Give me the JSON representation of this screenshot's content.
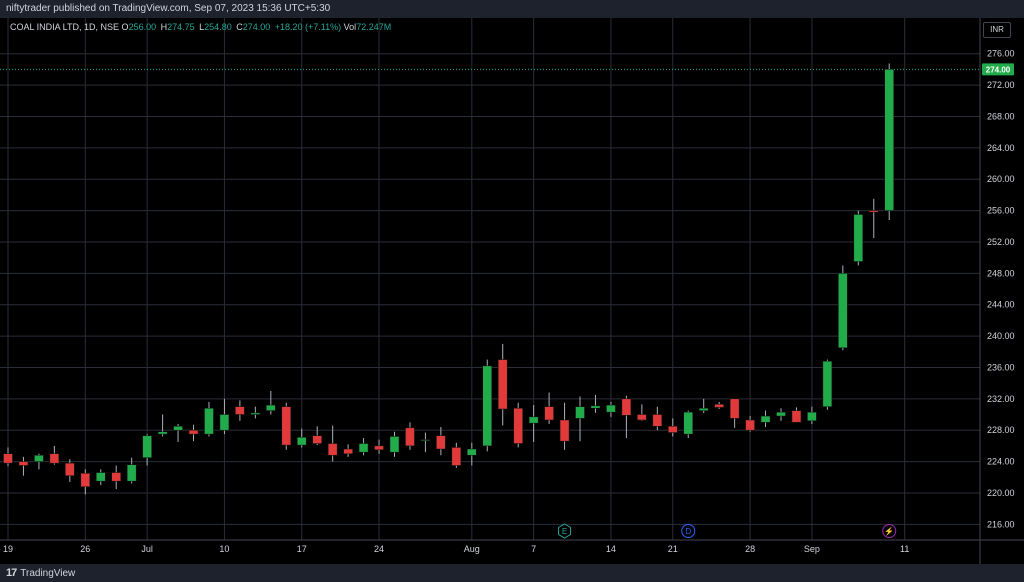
{
  "header": {
    "published": "niftytrader published on TradingView.com, Sep 07, 2023 15:36 UTC+5:30"
  },
  "legend": {
    "symbol": "COAL INDIA LTD, 1D, NSE",
    "open_label": "O",
    "open": "256.00",
    "high_label": "H",
    "high": "274.75",
    "low_label": "L",
    "low": "254.80",
    "close_label": "C",
    "close": "274.00",
    "change": "+18.20 (+7.11%)",
    "vol_label": "Vol",
    "vol": "72.247M"
  },
  "currency_button": "INR",
  "price_tag": "274.00",
  "footer": {
    "brand": "TradingView",
    "logo": "17"
  },
  "colors": {
    "up": "#26a69a",
    "up_body": "#22ab4a",
    "down": "#e03a3a",
    "grid": "#2a2e39",
    "axis_text": "#d1d4dc",
    "background": "#000000"
  },
  "event_markers": [
    {
      "label": "E",
      "x_index": 36,
      "color": "#26a69a",
      "icon": "earnings-icon"
    },
    {
      "label": "D",
      "x_index": 44,
      "color": "#2962ff",
      "icon": "dividend-icon"
    },
    {
      "label": "⚡",
      "x_index": 57,
      "color": "#9c27b0",
      "icon": "split-lightning-icon"
    }
  ],
  "chart_data": {
    "type": "candlestick",
    "y_ticks": [
      216,
      220,
      224,
      228,
      232,
      236,
      240,
      244,
      248,
      252,
      256,
      260,
      264,
      268,
      272,
      276
    ],
    "y_range": [
      214,
      278
    ],
    "x_ticks": [
      {
        "label": "19",
        "index": 0
      },
      {
        "label": "26",
        "index": 5
      },
      {
        "label": "Jul",
        "index": 9
      },
      {
        "label": "10",
        "index": 14
      },
      {
        "label": "17",
        "index": 19
      },
      {
        "label": "24",
        "index": 24
      },
      {
        "label": "Aug",
        "index": 30
      },
      {
        "label": "7",
        "index": 34
      },
      {
        "label": "14",
        "index": 39
      },
      {
        "label": "21",
        "index": 43
      },
      {
        "label": "28",
        "index": 48
      },
      {
        "label": "Sep",
        "index": 52
      },
      {
        "label": "11",
        "index": 58
      }
    ],
    "candles": [
      {
        "o": 225.0,
        "h": 225.8,
        "l": 223.4,
        "c": 223.8
      },
      {
        "o": 224.0,
        "h": 224.6,
        "l": 222.2,
        "c": 223.5
      },
      {
        "o": 224.0,
        "h": 225.0,
        "l": 223.0,
        "c": 224.8
      },
      {
        "o": 225.0,
        "h": 226.0,
        "l": 223.6,
        "c": 223.8
      },
      {
        "o": 223.8,
        "h": 224.3,
        "l": 221.4,
        "c": 222.2
      },
      {
        "o": 222.5,
        "h": 223.0,
        "l": 219.8,
        "c": 220.8
      },
      {
        "o": 221.5,
        "h": 223.0,
        "l": 221.0,
        "c": 222.6
      },
      {
        "o": 222.6,
        "h": 223.5,
        "l": 220.5,
        "c": 221.5
      },
      {
        "o": 221.5,
        "h": 224.5,
        "l": 221.2,
        "c": 223.6
      },
      {
        "o": 224.5,
        "h": 227.5,
        "l": 223.5,
        "c": 227.3
      },
      {
        "o": 227.5,
        "h": 230.0,
        "l": 227.2,
        "c": 227.8
      },
      {
        "o": 228.0,
        "h": 228.8,
        "l": 226.5,
        "c": 228.5
      },
      {
        "o": 228.0,
        "h": 228.7,
        "l": 226.6,
        "c": 227.5
      },
      {
        "o": 227.5,
        "h": 231.6,
        "l": 227.2,
        "c": 230.8
      },
      {
        "o": 228.0,
        "h": 232.0,
        "l": 227.5,
        "c": 230.0
      },
      {
        "o": 231.0,
        "h": 231.8,
        "l": 229.2,
        "c": 230.0
      },
      {
        "o": 230.0,
        "h": 231.0,
        "l": 229.5,
        "c": 230.2
      },
      {
        "o": 230.5,
        "h": 233.0,
        "l": 230.0,
        "c": 231.2
      },
      {
        "o": 231.0,
        "h": 231.5,
        "l": 225.5,
        "c": 226.1
      },
      {
        "o": 226.1,
        "h": 228.2,
        "l": 225.8,
        "c": 227.1
      },
      {
        "o": 227.3,
        "h": 228.5,
        "l": 226.1,
        "c": 226.3
      },
      {
        "o": 226.3,
        "h": 228.6,
        "l": 224.0,
        "c": 224.8
      },
      {
        "o": 225.6,
        "h": 226.2,
        "l": 224.6,
        "c": 225.0
      },
      {
        "o": 225.2,
        "h": 227.0,
        "l": 224.8,
        "c": 226.3
      },
      {
        "o": 226.0,
        "h": 226.8,
        "l": 225.0,
        "c": 225.5
      },
      {
        "o": 225.2,
        "h": 227.8,
        "l": 224.6,
        "c": 227.2
      },
      {
        "o": 228.3,
        "h": 229.0,
        "l": 225.5,
        "c": 226.0
      },
      {
        "o": 226.8,
        "h": 227.7,
        "l": 225.2,
        "c": 226.8
      },
      {
        "o": 227.3,
        "h": 228.4,
        "l": 224.8,
        "c": 225.6
      },
      {
        "o": 225.8,
        "h": 226.4,
        "l": 223.2,
        "c": 223.5
      },
      {
        "o": 224.8,
        "h": 226.4,
        "l": 223.5,
        "c": 225.6
      },
      {
        "o": 226.0,
        "h": 237.0,
        "l": 225.3,
        "c": 236.2
      },
      {
        "o": 237.0,
        "h": 239.0,
        "l": 228.6,
        "c": 230.7
      },
      {
        "o": 230.8,
        "h": 231.5,
        "l": 225.8,
        "c": 226.3
      },
      {
        "o": 228.9,
        "h": 231.2,
        "l": 226.5,
        "c": 229.7
      },
      {
        "o": 231.0,
        "h": 232.8,
        "l": 228.8,
        "c": 229.3
      },
      {
        "o": 229.3,
        "h": 231.5,
        "l": 225.5,
        "c": 226.6
      },
      {
        "o": 229.5,
        "h": 232.3,
        "l": 226.6,
        "c": 231.0
      },
      {
        "o": 230.8,
        "h": 232.5,
        "l": 230.2,
        "c": 231.1
      },
      {
        "o": 230.3,
        "h": 231.6,
        "l": 229.7,
        "c": 231.2
      },
      {
        "o": 232.0,
        "h": 232.4,
        "l": 227.0,
        "c": 229.9
      },
      {
        "o": 230.0,
        "h": 231.3,
        "l": 229.2,
        "c": 229.3
      },
      {
        "o": 230.0,
        "h": 231.0,
        "l": 228.0,
        "c": 228.5
      },
      {
        "o": 228.5,
        "h": 229.5,
        "l": 227.2,
        "c": 227.7
      },
      {
        "o": 227.5,
        "h": 230.5,
        "l": 227.0,
        "c": 230.3
      },
      {
        "o": 230.5,
        "h": 232.0,
        "l": 230.2,
        "c": 230.8
      },
      {
        "o": 231.3,
        "h": 231.6,
        "l": 230.7,
        "c": 230.9
      },
      {
        "o": 232.0,
        "h": 232.0,
        "l": 228.3,
        "c": 229.5
      },
      {
        "o": 229.3,
        "h": 229.8,
        "l": 227.8,
        "c": 228.0
      },
      {
        "o": 229.0,
        "h": 230.5,
        "l": 228.4,
        "c": 229.8
      },
      {
        "o": 229.8,
        "h": 230.8,
        "l": 229.2,
        "c": 230.3
      },
      {
        "o": 230.5,
        "h": 230.9,
        "l": 229.0,
        "c": 229.0
      },
      {
        "o": 229.2,
        "h": 231.0,
        "l": 228.8,
        "c": 230.3
      },
      {
        "o": 231.0,
        "h": 237.0,
        "l": 230.6,
        "c": 236.8
      },
      {
        "o": 238.5,
        "h": 249.0,
        "l": 238.2,
        "c": 248.0
      },
      {
        "o": 249.5,
        "h": 256.0,
        "l": 249.0,
        "c": 255.5
      },
      {
        "o": 256.0,
        "h": 257.5,
        "l": 252.5,
        "c": 255.8
      },
      {
        "o": 256.0,
        "h": 274.75,
        "l": 254.8,
        "c": 274.0
      }
    ]
  }
}
